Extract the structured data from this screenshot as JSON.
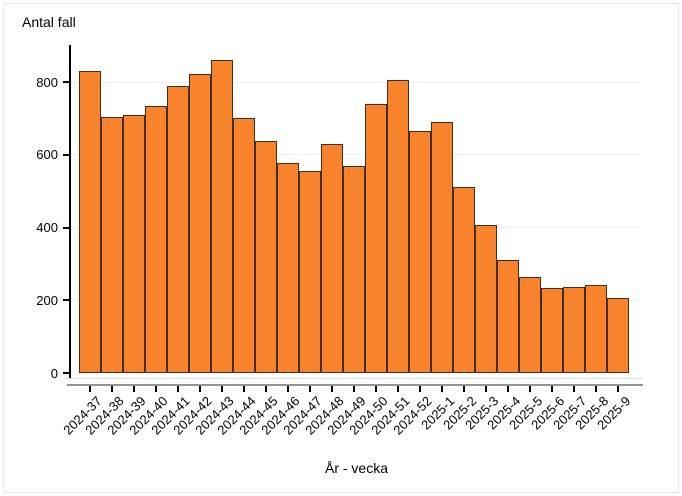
{
  "title": "Antal fall",
  "x_axis_title": "År - vecka",
  "chart_data": {
    "type": "bar",
    "title": "Antal fall",
    "xlabel": "År - vecka",
    "ylabel": "Antal fall",
    "categories": [
      "2024-37",
      "2024-38",
      "2024-39",
      "2024-40",
      "2024-41",
      "2024-42",
      "2024-43",
      "2024-44",
      "2024-45",
      "2024-46",
      "2024-47",
      "2024-48",
      "2024-49",
      "2024-50",
      "2024-51",
      "2024-52",
      "2025-1",
      "2025-2",
      "2025-3",
      "2025-4",
      "2025-5",
      "2025-6",
      "2025-7",
      "2025-8",
      "2025-9"
    ],
    "values": [
      830,
      705,
      708,
      735,
      790,
      823,
      860,
      701,
      637,
      578,
      554,
      630,
      568,
      740,
      805,
      666,
      690,
      510,
      408,
      312,
      264,
      233,
      236,
      241,
      206
    ],
    "ylim": [
      0,
      900
    ],
    "yticks": [
      0,
      200,
      400,
      600,
      800
    ],
    "grid": "horizontal",
    "legend": "none",
    "colors": {
      "bar_fill": "#f9832d",
      "bar_stroke": "#3f2f1c",
      "gridline": "#e9eef4",
      "y_axis": "#000000",
      "x_axis_line": "#8f9499",
      "frame_line": "#d9dee3",
      "text": "#000000",
      "outer_border": "#e3e9f0"
    }
  }
}
